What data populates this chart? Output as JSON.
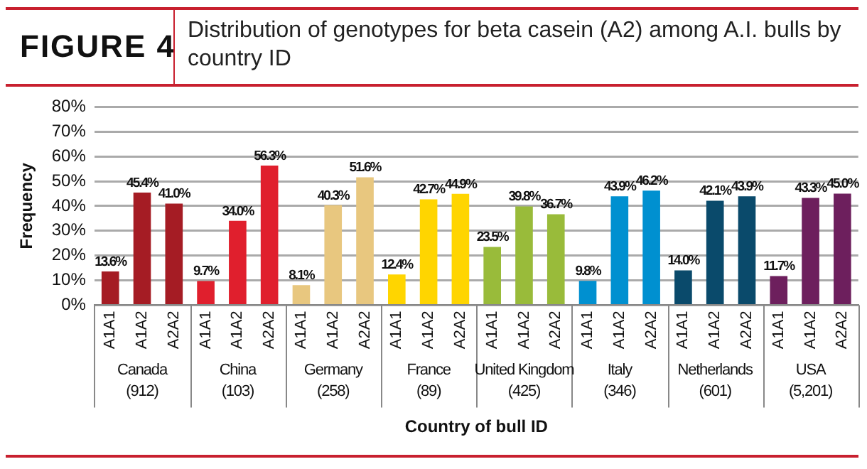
{
  "chart_data": {
    "type": "bar",
    "title": "FIGURE 4",
    "subtitle": "Distribution of genotypes for beta casein (A2) among A.I. bulls by country ID",
    "xlabel": "Country of bull ID",
    "ylabel": "Frequency",
    "categories": [
      "A1A1",
      "A1A2",
      "A2A2",
      "A1A1",
      "A1A2",
      "A2A2",
      "A1A1",
      "A1A2",
      "A2A2",
      "A1A1",
      "A1A2",
      "A2A2",
      "A1A1",
      "A1A2",
      "A2A2",
      "A1A1",
      "A1A2",
      "A2A2",
      "A1A1",
      "A1A2",
      "A2A2",
      "A1A1",
      "A1A2",
      "A2A2"
    ],
    "values": [
      13.6,
      45.4,
      41.0,
      9.7,
      34.0,
      56.3,
      8.1,
      40.3,
      51.6,
      12.4,
      42.7,
      44.9,
      23.5,
      39.8,
      36.7,
      9.8,
      43.9,
      46.2,
      14.0,
      42.1,
      43.9,
      11.7,
      43.3,
      45.0
    ],
    "value_labels": [
      "13.6%",
      "45.4%",
      "41.0%",
      "9.7%",
      "34.0%",
      "56.3%",
      "8.1%",
      "40.3%",
      "51.6%",
      "12.4%",
      "42.7%",
      "44.9%",
      "23.5%",
      "39.8%",
      "36.7%",
      "9.8%",
      "43.9%",
      "46.2%",
      "14.0%",
      "42.1%",
      "43.9%",
      "11.7%",
      "43.3%",
      "45.0%"
    ],
    "colors": [
      "#a51c24",
      "#a51c24",
      "#a51c24",
      "#e01f2d",
      "#e01f2d",
      "#e01f2d",
      "#e8c77f",
      "#e8c77f",
      "#e8c77f",
      "#ffd500",
      "#ffd500",
      "#ffd500",
      "#99bb3a",
      "#99bb3a",
      "#99bb3a",
      "#0090d0",
      "#0090d0",
      "#0090d0",
      "#0a4a6b",
      "#0a4a6b",
      "#0a4a6b",
      "#6d1f5d",
      "#6d1f5d",
      "#6d1f5d"
    ],
    "ylim": [
      0,
      80
    ],
    "yticks": [
      {
        "value": 0,
        "label": "0%"
      },
      {
        "value": 10,
        "label": "10%"
      },
      {
        "value": 20,
        "label": "20%"
      },
      {
        "value": 30,
        "label": "30%"
      },
      {
        "value": 40,
        "label": "40%"
      },
      {
        "value": 50,
        "label": "50%"
      },
      {
        "value": 60,
        "label": "60%"
      },
      {
        "value": 70,
        "label": "70%"
      },
      {
        "value": 80,
        "label": "80%"
      }
    ],
    "grid": "y",
    "legend": false,
    "annotations": [
      "Canada\n(912)",
      "China\n(103)",
      "Germany\n(258)",
      "France\n(89)",
      "United Kingdom\n(425)",
      "Italy\n(346)",
      "Netherlands\n(601)",
      "USA\n(5,201)"
    ]
  }
}
